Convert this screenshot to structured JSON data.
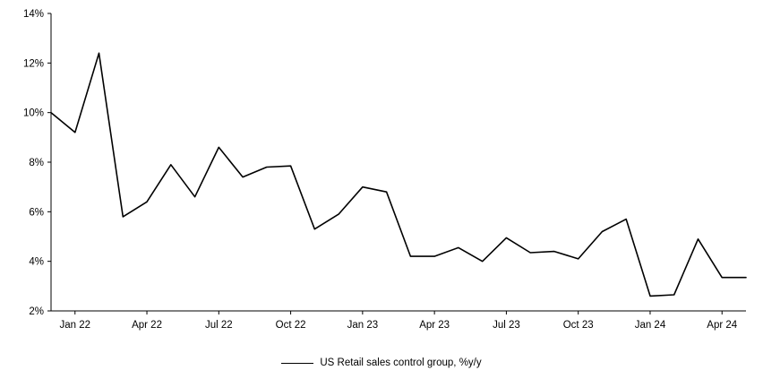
{
  "chart_data": {
    "type": "line",
    "title": "",
    "xlabel": "",
    "ylabel": "",
    "ylim": [
      2,
      14
    ],
    "grid": false,
    "legend_position": "bottom",
    "line_color": "#000000",
    "axis_color": "#000000",
    "y_ticks": [
      2,
      4,
      6,
      8,
      10,
      12,
      14
    ],
    "y_tick_labels": [
      "2%",
      "4%",
      "6%",
      "8%",
      "10%",
      "12%",
      "14%"
    ],
    "x_tick_labels": [
      "Jan 22",
      "Apr 22",
      "Jul 22",
      "Oct 22",
      "Jan 23",
      "Apr 23",
      "Jul 23",
      "Oct 23",
      "Jan 24",
      "Apr 24"
    ],
    "x_tick_indices": [
      1,
      4,
      7,
      10,
      13,
      16,
      19,
      22,
      25,
      28
    ],
    "series": [
      {
        "name": "US Retail sales control group, %y/y",
        "x": [
          "Dec 21",
          "Jan 22",
          "Feb 22",
          "Mar 22",
          "Apr 22",
          "May 22",
          "Jun 22",
          "Jul 22",
          "Aug 22",
          "Sep 22",
          "Oct 22",
          "Nov 22",
          "Dec 22",
          "Jan 23",
          "Feb 23",
          "Mar 23",
          "Apr 23",
          "May 23",
          "Jun 23",
          "Jul 23",
          "Aug 23",
          "Sep 23",
          "Oct 23",
          "Nov 23",
          "Dec 23",
          "Jan 24",
          "Feb 24",
          "Mar 24",
          "Apr 24",
          "May 24"
        ],
        "values": [
          10.0,
          9.2,
          12.4,
          5.8,
          6.4,
          7.9,
          6.6,
          8.6,
          7.4,
          7.8,
          7.85,
          5.3,
          5.9,
          7.0,
          6.8,
          4.2,
          4.2,
          4.55,
          4.0,
          4.95,
          4.35,
          4.4,
          4.1,
          5.2,
          5.7,
          2.6,
          2.65,
          4.9,
          3.35,
          3.35
        ]
      }
    ]
  },
  "legend": {
    "label": "US Retail sales control group, %y/y"
  }
}
